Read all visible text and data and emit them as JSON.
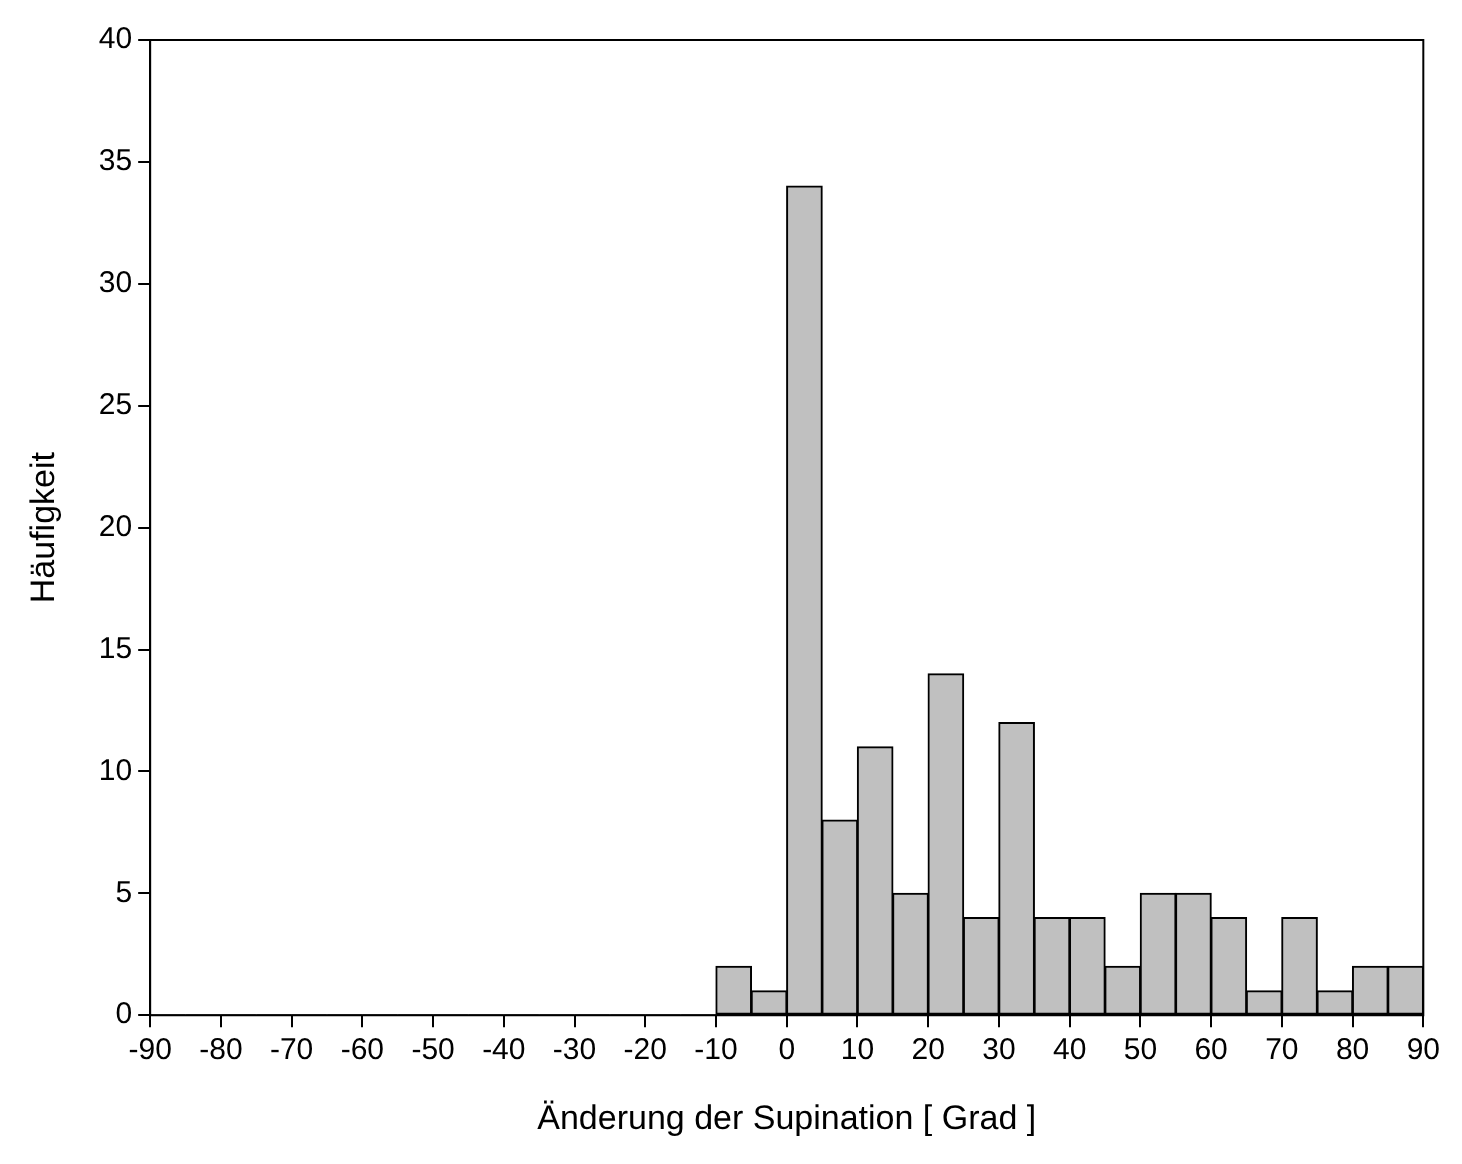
{
  "chart_data": {
    "type": "histogram",
    "xlabel": "Änderung der Supination [ Grad ]",
    "ylabel": "Häufigkeit",
    "bins": [
      -90,
      -85,
      -80,
      -75,
      -70,
      -65,
      -60,
      -55,
      -50,
      -45,
      -40,
      -35,
      -30,
      -25,
      -20,
      -15,
      -10,
      -5,
      0,
      5,
      10,
      15,
      20,
      25,
      30,
      35,
      40,
      45,
      50,
      55,
      60,
      65,
      70,
      75,
      80,
      85,
      90
    ],
    "values": [
      0,
      0,
      0,
      0,
      0,
      0,
      0,
      0,
      0,
      0,
      0,
      0,
      0,
      0,
      0,
      0,
      2,
      1,
      34,
      8,
      11,
      5,
      14,
      4,
      12,
      4,
      4,
      2,
      5,
      5,
      4,
      1,
      4,
      1,
      2,
      2
    ],
    "color": "#c0c0c0",
    "xlim": [
      -90,
      90
    ],
    "xticks": [
      -90,
      -80,
      -70,
      -60,
      -50,
      -40,
      -30,
      -20,
      -10,
      0,
      10,
      20,
      30,
      40,
      50,
      60,
      70,
      80,
      90
    ],
    "ylim": [
      0,
      40
    ],
    "yticks": [
      0,
      5,
      10,
      15,
      20,
      25,
      30,
      35,
      40
    ],
    "grid": false,
    "legend": false
  }
}
